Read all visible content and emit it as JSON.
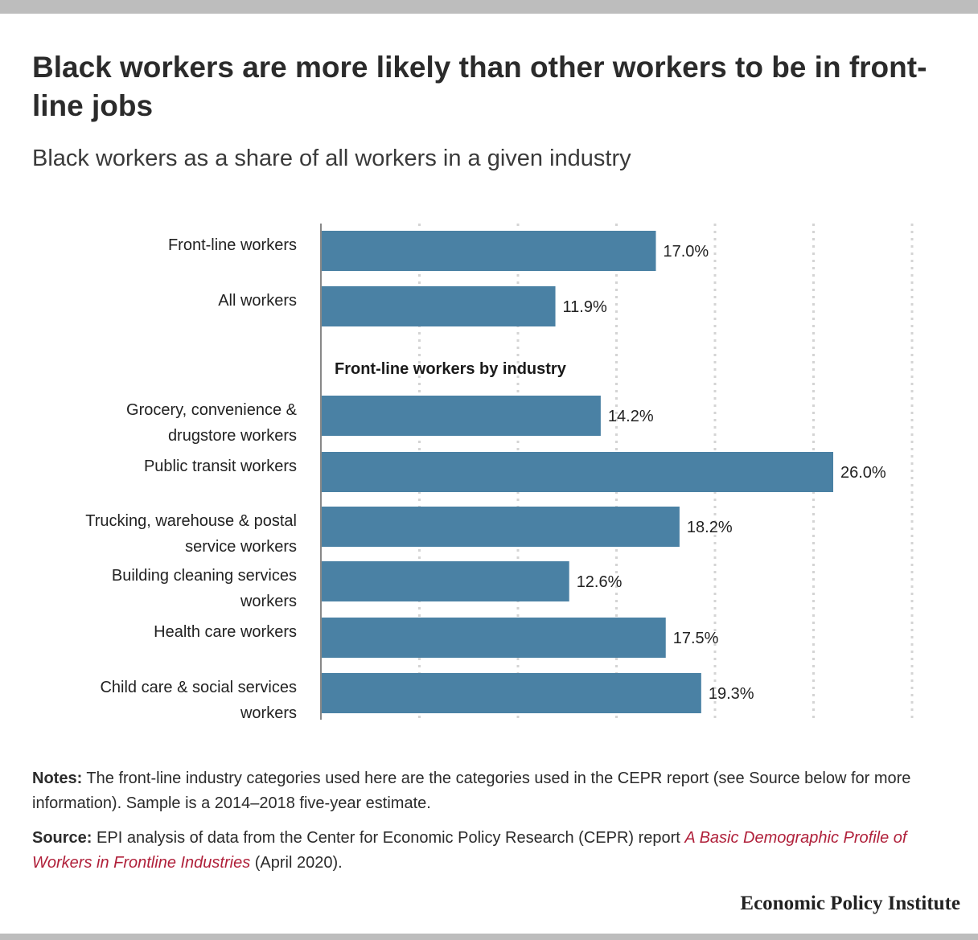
{
  "title": "Black workers are more likely than other workers to be in front-line jobs",
  "subtitle": "Black workers as a share of all workers in a given industry",
  "chart_data": {
    "type": "bar",
    "orientation": "horizontal",
    "value_suffix": "%",
    "xlim": [
      0,
      30
    ],
    "grid": true,
    "section_label": "Front-line workers by industry",
    "categories": [
      [
        "Front-line workers"
      ],
      [
        "All workers"
      ],
      [
        "Grocery, convenience &",
        "drugstore workers"
      ],
      [
        "Public transit workers"
      ],
      [
        "Trucking, warehouse & postal",
        "service workers"
      ],
      [
        "Building cleaning services",
        "workers"
      ],
      [
        "Health care workers"
      ],
      [
        "Child care & social services",
        "workers"
      ]
    ],
    "values": [
      17.0,
      11.9,
      14.2,
      26.0,
      18.2,
      12.6,
      17.5,
      19.3
    ],
    "value_labels": [
      "17.0%",
      "11.9%",
      "14.2%",
      "26.0%",
      "18.2%",
      "12.6%",
      "17.5%",
      "19.3%"
    ],
    "bar_color": "#4a81a4"
  },
  "notes": {
    "label": "Notes:",
    "text": " The front-line industry categories used here are the categories used in the CEPR report (see Source below for more information). Sample is a 2014–2018 five-year estimate."
  },
  "source": {
    "label": "Source:",
    "text_before": " EPI analysis of data from the Center for Economic Policy Research (CEPR) report ",
    "link_text": "A Basic Demographic Profile of Workers in Frontline Industries",
    "text_after": " (April 2020)."
  },
  "brand": "Economic Policy Institute"
}
